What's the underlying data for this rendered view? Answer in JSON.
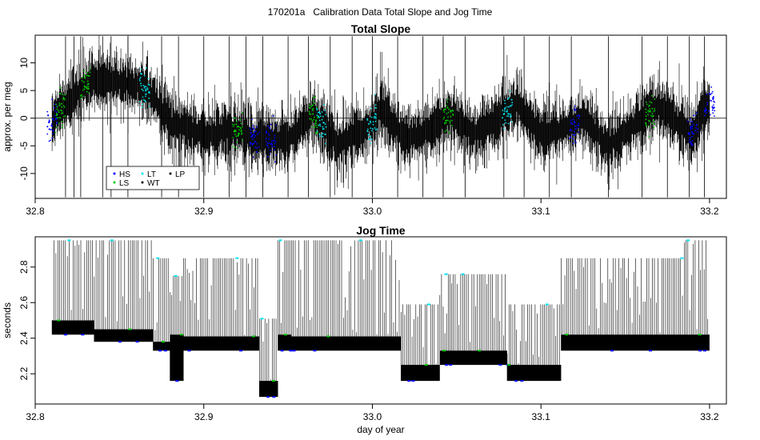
{
  "page_title": "170201a   Calibration Data Total Slope and Jog Time",
  "colors": {
    "black": "#000000",
    "HS": "#0000ff",
    "LS": "#00cc00",
    "LT": "#00e5ee",
    "WT": "#000000",
    "LP": "#000000"
  },
  "chart_data": [
    {
      "type": "line",
      "title": "Total Slope",
      "xlabel": "",
      "ylabel": "approx. per meg",
      "xlim": [
        32.8,
        33.21
      ],
      "ylim": [
        -14.5,
        15
      ],
      "x_ticks": [
        32.8,
        32.9,
        33.0,
        33.1,
        33.2
      ],
      "x_tick_labels": [
        "32.8",
        "32.9",
        "33.0",
        "33.1",
        "33.2"
      ],
      "y_ticks": [
        -10,
        -5,
        0,
        5,
        10
      ],
      "y_tick_labels": [
        "-10",
        "-5",
        "0",
        "5",
        "10"
      ],
      "reference_line_y": 0,
      "legend": {
        "placement": "bottom-left",
        "entries": [
          {
            "label": "HS",
            "color": "#0000ff"
          },
          {
            "label": "LS",
            "color": "#00cc00"
          },
          {
            "label": "LT",
            "color": "#00e5ee"
          },
          {
            "label": "WT",
            "color": "#000000"
          },
          {
            "label": "LP",
            "color": "#000000"
          }
        ]
      },
      "trend_series": {
        "x": [
          32.81,
          32.815,
          32.83,
          32.84,
          32.86,
          32.87,
          32.88,
          32.9,
          32.92,
          32.93,
          32.95,
          32.965,
          32.98,
          33.0,
          33.005,
          33.02,
          33.04,
          33.045,
          33.06,
          33.08,
          33.085,
          33.1,
          33.12,
          33.125,
          33.14,
          33.16,
          33.17,
          33.19,
          33.2
        ],
        "y": [
          -1,
          2,
          6,
          7,
          6,
          4,
          -1,
          -3,
          -2,
          -4,
          -4,
          1,
          -5,
          -1,
          2,
          -4,
          -1,
          1,
          -3,
          1,
          3,
          -3,
          -1,
          0,
          -5,
          0,
          2,
          -3,
          3
        ]
      },
      "highlight_points": [
        {
          "group": "HS",
          "x": [
            32.81,
            32.93,
            32.94,
            33.12,
            33.19,
            33.2
          ]
        },
        {
          "group": "LS",
          "x": [
            32.815,
            32.83,
            32.92,
            32.965,
            33.045,
            33.165
          ]
        },
        {
          "group": "LT",
          "x": [
            32.865,
            32.97,
            33.0,
            33.08
          ]
        }
      ]
    },
    {
      "type": "line",
      "title": "Jog Time",
      "xlabel": "day of year",
      "ylabel": "seconds",
      "xlim": [
        32.8,
        33.21
      ],
      "ylim": [
        2.03,
        2.97
      ],
      "x_ticks": [
        32.8,
        32.9,
        33.0,
        33.1,
        33.2
      ],
      "x_tick_labels": [
        "32.8",
        "32.9",
        "33.0",
        "33.1",
        "33.2"
      ],
      "y_ticks": [
        2.2,
        2.4,
        2.6,
        2.8
      ],
      "y_tick_labels": [
        "2.2",
        "2.4",
        "2.6",
        "2.8"
      ],
      "segments": [
        {
          "x_start": 32.81,
          "x_end": 32.835,
          "low": 2.42,
          "mid": 2.5,
          "high": 2.95
        },
        {
          "x_start": 32.835,
          "x_end": 32.87,
          "low": 2.38,
          "mid": 2.45,
          "high": 2.95
        },
        {
          "x_start": 32.87,
          "x_end": 32.88,
          "low": 2.33,
          "mid": 2.38,
          "high": 2.85
        },
        {
          "x_start": 32.88,
          "x_end": 32.888,
          "low": 2.16,
          "mid": 2.42,
          "high": 2.75
        },
        {
          "x_start": 32.888,
          "x_end": 32.933,
          "low": 2.33,
          "mid": 2.41,
          "high": 2.85
        },
        {
          "x_start": 32.933,
          "x_end": 32.944,
          "low": 2.07,
          "mid": 2.16,
          "high": 2.51
        },
        {
          "x_start": 32.944,
          "x_end": 32.952,
          "low": 2.33,
          "mid": 2.42,
          "high": 2.95
        },
        {
          "x_start": 32.952,
          "x_end": 33.017,
          "low": 2.33,
          "mid": 2.41,
          "high": 2.95
        },
        {
          "x_start": 33.017,
          "x_end": 33.04,
          "low": 2.16,
          "mid": 2.25,
          "high": 2.59
        },
        {
          "x_start": 33.04,
          "x_end": 33.048,
          "low": 2.25,
          "mid": 2.33,
          "high": 2.76
        },
        {
          "x_start": 33.048,
          "x_end": 33.08,
          "low": 2.25,
          "mid": 2.33,
          "high": 2.76
        },
        {
          "x_start": 33.08,
          "x_end": 33.112,
          "low": 2.16,
          "mid": 2.25,
          "high": 2.59
        },
        {
          "x_start": 33.112,
          "x_end": 33.185,
          "low": 2.33,
          "mid": 2.42,
          "high": 2.85
        },
        {
          "x_start": 33.185,
          "x_end": 33.2,
          "low": 2.33,
          "mid": 2.42,
          "high": 2.95
        }
      ]
    }
  ]
}
